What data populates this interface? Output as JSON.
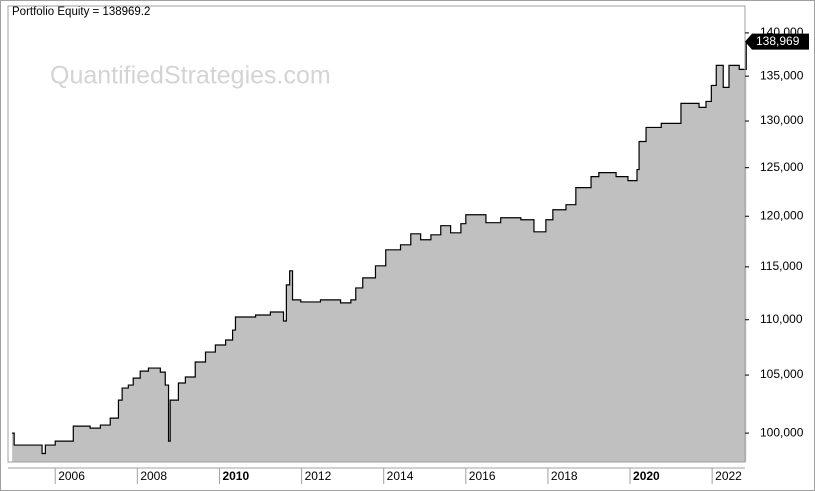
{
  "chart_data": {
    "type": "area",
    "title": "Portfolio Equity = 138969.2",
    "watermark": "QuantifiedStrategies.com",
    "x": [
      2004.95,
      2005.0,
      2005.63,
      2005.68,
      2005.76,
      2006.0,
      2006.44,
      2006.85,
      2007.1,
      2007.34,
      2007.54,
      2007.63,
      2007.78,
      2007.9,
      2008.07,
      2008.27,
      2008.56,
      2008.68,
      2008.76,
      2008.8,
      2009.0,
      2009.17,
      2009.41,
      2009.66,
      2009.9,
      2010.15,
      2010.32,
      2010.39,
      2010.88,
      2011.24,
      2011.56,
      2011.63,
      2011.71,
      2011.78,
      2011.98,
      2012.46,
      2012.95,
      2013.2,
      2013.32,
      2013.49,
      2013.8,
      2014.05,
      2014.41,
      2014.66,
      2014.9,
      2015.15,
      2015.39,
      2015.63,
      2015.88,
      2016.0,
      2016.49,
      2016.85,
      2017.34,
      2017.66,
      2017.95,
      2018.12,
      2018.44,
      2018.68,
      2019.05,
      2019.24,
      2019.66,
      2019.95,
      2020.17,
      2020.22,
      2020.39,
      2020.76,
      2021.24,
      2021.68,
      2021.85,
      2021.98,
      2022.1,
      2022.27,
      2022.41,
      2022.66,
      2022.83
    ],
    "values": [
      100000,
      99000,
      99000,
      98300,
      99000,
      99330,
      100590,
      100420,
      100680,
      101270,
      102810,
      103860,
      104120,
      104730,
      105350,
      105620,
      105260,
      104120,
      99330,
      102810,
      104300,
      104830,
      106160,
      107050,
      107690,
      108140,
      109050,
      110250,
      110440,
      110720,
      109880,
      113270,
      114620,
      111850,
      111660,
      111850,
      111570,
      111850,
      112980,
      113940,
      115100,
      116660,
      117150,
      118240,
      117650,
      118140,
      119050,
      118340,
      119250,
      120150,
      119350,
      119850,
      119650,
      118440,
      119650,
      120660,
      121170,
      122920,
      124060,
      124480,
      124060,
      123650,
      124800,
      127780,
      129300,
      129740,
      131940,
      131500,
      132160,
      133950,
      136230,
      133730,
      136230,
      135770,
      138969.2
    ],
    "last_value_label": "138,969",
    "color": "#c0c0c0",
    "line_color": "#000000",
    "log_y": true,
    "xlim": [
      2004.85,
      2022.8
    ],
    "xticks": [
      2006,
      2008,
      2010,
      2012,
      2014,
      2016,
      2018,
      2020,
      2022
    ],
    "bold_xticks": [
      2010,
      2020
    ],
    "ylim": [
      97600,
      143200
    ],
    "yticks": [
      {
        "value": 100000,
        "label": "100,000"
      },
      {
        "value": 105000,
        "label": "105,000"
      },
      {
        "value": 110000,
        "label": "110,000"
      },
      {
        "value": 115000,
        "label": "115,000"
      },
      {
        "value": 120000,
        "label": "120,000"
      },
      {
        "value": 125000,
        "label": "125,000"
      },
      {
        "value": 130000,
        "label": "130,000"
      },
      {
        "value": 135000,
        "label": "135,000"
      },
      {
        "value": 140000,
        "label": "140,000"
      }
    ]
  }
}
